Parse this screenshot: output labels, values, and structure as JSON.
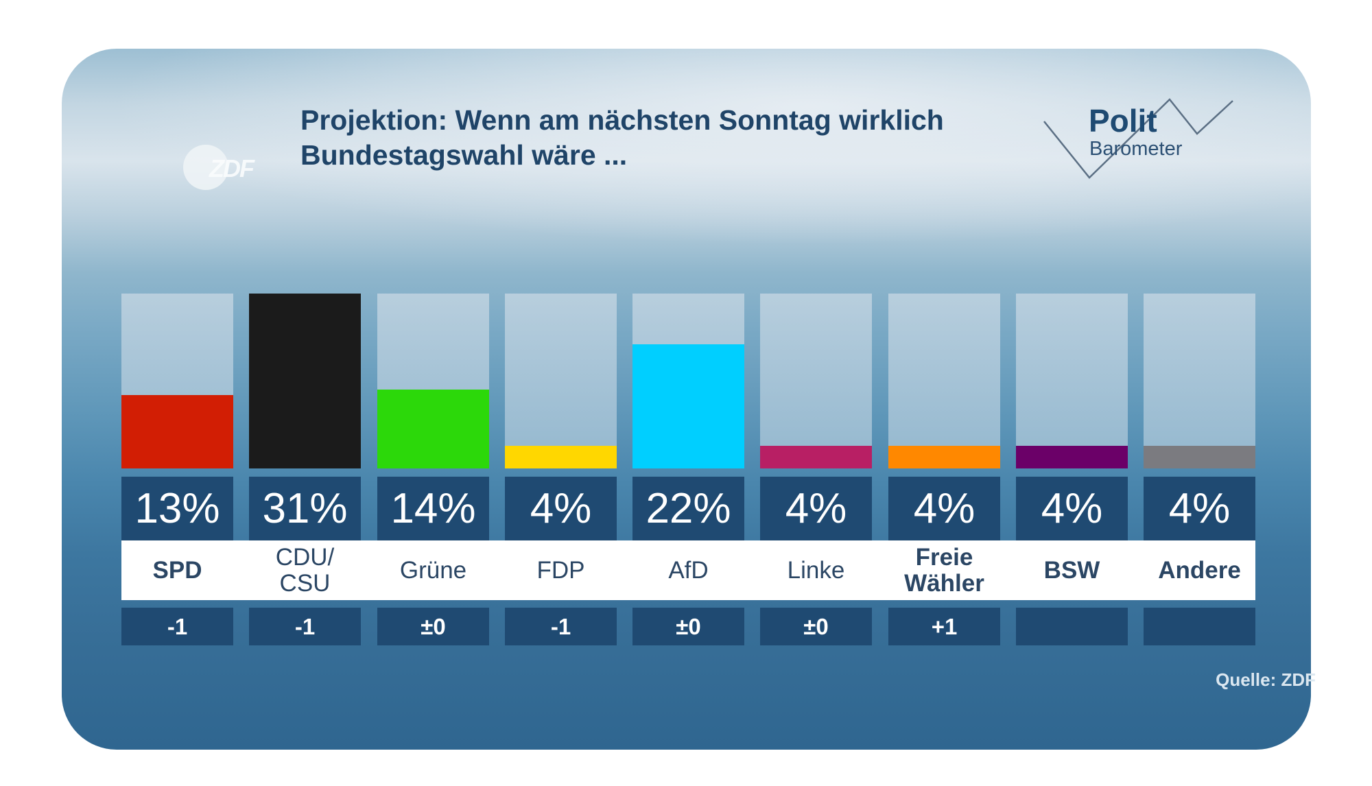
{
  "header": {
    "broadcaster_logo": "ZDF",
    "title_line1": "Projektion: Wenn am nächsten Sonntag wirklich",
    "title_line2": "Bundestagswahl wäre ...",
    "brand_line1": "Polit",
    "brand_line2": "Barometer"
  },
  "footer": {
    "source": "Quelle: ZDF"
  },
  "chart_data": {
    "type": "bar",
    "title": "Projektion: Wenn am nächsten Sonntag wirklich Bundestagswahl wäre ...",
    "xlabel": "",
    "ylabel": "",
    "unit": "%",
    "ylim": [
      0,
      31
    ],
    "grid": false,
    "legend": "none",
    "categories": [
      "SPD",
      "CDU/\nCSU",
      "Grüne",
      "FDP",
      "AfD",
      "Linke",
      "Freie\nWähler",
      "BSW",
      "Andere"
    ],
    "values": [
      13,
      31,
      14,
      4,
      22,
      4,
      4,
      4,
      4
    ],
    "value_labels": [
      "13%",
      "31%",
      "14%",
      "4%",
      "22%",
      "4%",
      "4%",
      "4%",
      "4%"
    ],
    "changes": [
      "-1",
      "-1",
      "±0",
      "-1",
      "±0",
      "±0",
      "+1",
      "",
      ""
    ],
    "colors": [
      "#d21e04",
      "#1b1b1b",
      "#2cd80a",
      "#ffd700",
      "#00cfff",
      "#b81f64",
      "#ff8800",
      "#6b0068",
      "#7b7b80"
    ],
    "source": "Quelle: ZDF"
  }
}
